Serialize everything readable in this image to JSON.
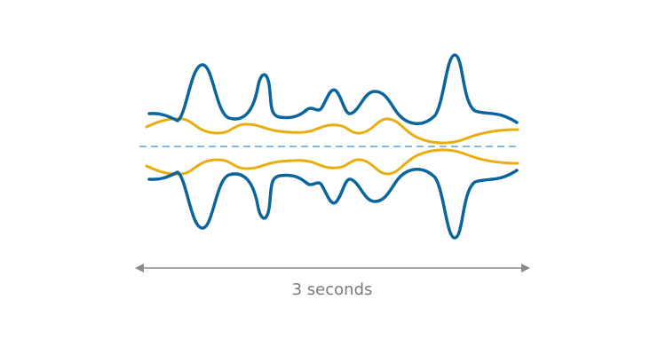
{
  "label": "3 seconds"
}
